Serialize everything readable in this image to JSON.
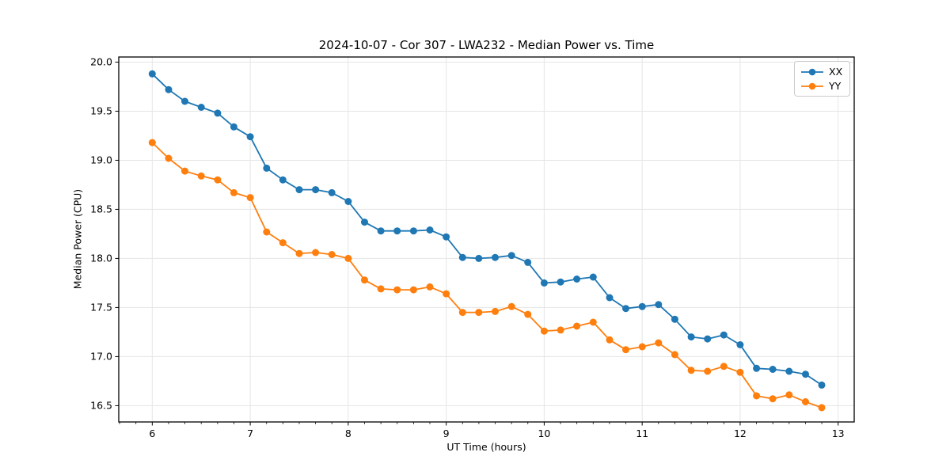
{
  "chart_data": {
    "type": "line",
    "title": "2024-10-07 - Cor 307 - LWA232 - Median Power vs. Time",
    "xlabel": "UT Time (hours)",
    "ylabel": "Median Power (CPU)",
    "xlim": [
      5.658,
      13.164
    ],
    "ylim": [
      16.334,
      20.052
    ],
    "x_ticks": [
      6,
      7,
      8,
      9,
      10,
      11,
      12,
      13
    ],
    "x_minor_divisions": 6,
    "y_ticks": [
      16.5,
      17.0,
      17.5,
      18.0,
      18.5,
      19.0,
      19.5,
      20.0
    ],
    "grid": true,
    "legend_position": "upper right",
    "colors": {
      "grid": "#e5e5e5",
      "spine": "#000000",
      "legend_border": "#cbcbcb"
    },
    "x": [
      6.0,
      6.167,
      6.333,
      6.5,
      6.667,
      6.833,
      7.0,
      7.167,
      7.333,
      7.5,
      7.667,
      7.833,
      8.0,
      8.167,
      8.333,
      8.5,
      8.667,
      8.833,
      9.0,
      9.167,
      9.333,
      9.5,
      9.667,
      9.833,
      10.0,
      10.167,
      10.333,
      10.5,
      10.667,
      10.833,
      11.0,
      11.167,
      11.333,
      11.5,
      11.667,
      11.833,
      12.0,
      12.167,
      12.333,
      12.5,
      12.667,
      12.833
    ],
    "series": [
      {
        "name": "XX",
        "color": "#1f77b4",
        "values": [
          19.88,
          19.72,
          19.6,
          19.54,
          19.48,
          19.34,
          19.24,
          18.92,
          18.8,
          18.7,
          18.7,
          18.67,
          18.58,
          18.37,
          18.28,
          18.28,
          18.28,
          18.29,
          18.22,
          18.01,
          18.0,
          18.01,
          18.03,
          17.96,
          17.75,
          17.76,
          17.79,
          17.81,
          17.6,
          17.49,
          17.51,
          17.53,
          17.38,
          17.2,
          17.18,
          17.22,
          17.12,
          16.88,
          16.87,
          16.85,
          16.82,
          16.71
        ]
      },
      {
        "name": "YY",
        "color": "#ff7f0e",
        "values": [
          19.18,
          19.02,
          18.89,
          18.84,
          18.8,
          18.67,
          18.62,
          18.27,
          18.16,
          18.05,
          18.06,
          18.04,
          18.0,
          17.78,
          17.69,
          17.68,
          17.68,
          17.71,
          17.64,
          17.45,
          17.45,
          17.46,
          17.51,
          17.43,
          17.26,
          17.27,
          17.31,
          17.35,
          17.17,
          17.07,
          17.1,
          17.14,
          17.02,
          16.86,
          16.85,
          16.9,
          16.84,
          16.6,
          16.57,
          16.61,
          16.54,
          16.48
        ]
      }
    ]
  }
}
